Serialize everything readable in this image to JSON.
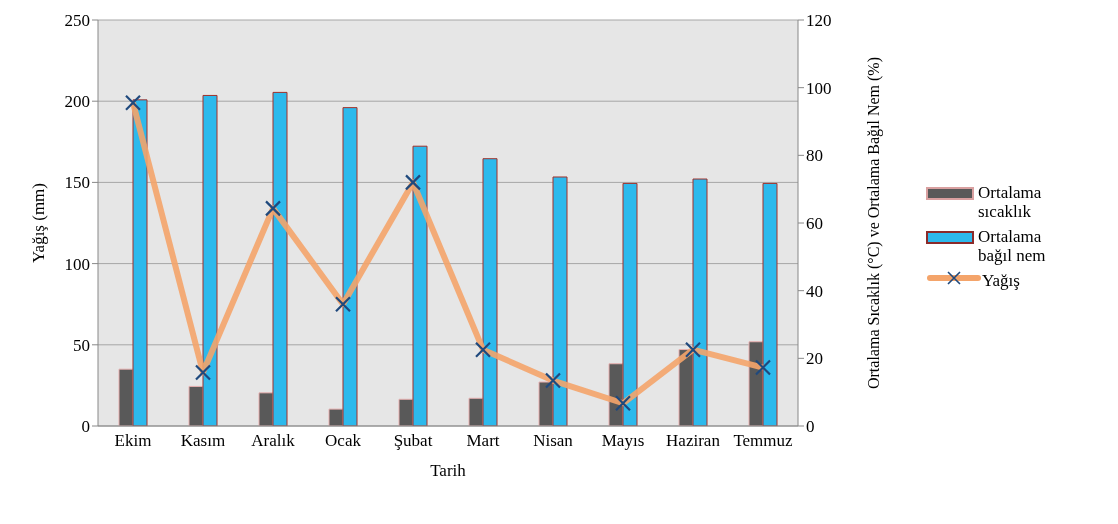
{
  "chart_data": {
    "type": "bar",
    "xlabel": "Tarih",
    "ylabel": "Yağış (mm)",
    "y2label": "Ortalama Sıcaklık (°C) ve Ortalama Bağıl Nem (%)",
    "categories": [
      "Ekim",
      "Kasım",
      "Aralık",
      "Ocak",
      "Şubat",
      "Mart",
      "Nisan",
      "Mayıs",
      "Haziran",
      "Temmuz"
    ],
    "series": [
      {
        "name": "Ortalama sıcaklık",
        "axis": "y2",
        "color": "#595959",
        "values": [
          16.8,
          11.7,
          9.8,
          5.0,
          7.9,
          8.2,
          13.0,
          18.4,
          22.6,
          24.9
        ]
      },
      {
        "name": "Ortalama bağıl nem",
        "axis": "y2",
        "color": "#2db9ec",
        "values": [
          96.4,
          97.7,
          98.6,
          94.1,
          82.7,
          79.0,
          73.6,
          71.7,
          73.0,
          71.7
        ]
      },
      {
        "name": "Yağış",
        "type": "line",
        "axis": "y",
        "color": "#f4a46a",
        "marker": "cross",
        "values": [
          199,
          33,
          134,
          75,
          150,
          47,
          28,
          14,
          47,
          36
        ]
      }
    ],
    "ylim": [
      0,
      250
    ],
    "yticks": [
      0,
      50,
      100,
      150,
      200,
      250
    ],
    "y2lim": [
      0,
      120
    ],
    "y2ticks": [
      0,
      20,
      40,
      60,
      80,
      100,
      120
    ],
    "grid": "y",
    "legend": "right"
  }
}
